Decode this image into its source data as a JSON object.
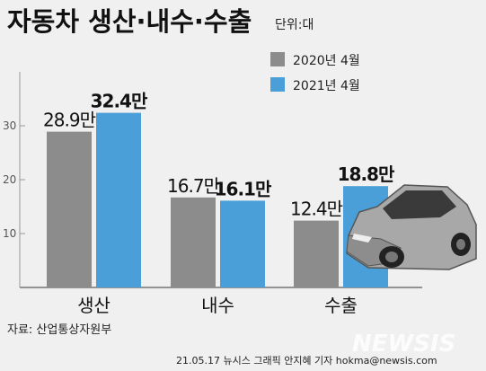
{
  "header": {
    "title": "자동차 생산·내수·수출",
    "unit": "단위:대"
  },
  "chart_data": {
    "type": "bar",
    "categories": [
      "생산",
      "내수",
      "수출"
    ],
    "series": [
      {
        "name": "2020년 4월",
        "values": [
          28.9,
          16.7,
          12.4
        ],
        "labels": [
          "28.9만",
          "16.7만",
          "12.4만"
        ],
        "color": "#8c8c8c"
      },
      {
        "name": "2021년 4월",
        "values": [
          32.4,
          16.1,
          18.8
        ],
        "labels": [
          "32.4만",
          "16.1만",
          "18.8만"
        ],
        "color": "#4a9fd8"
      }
    ],
    "yticks": [
      10,
      20,
      30
    ],
    "ylim": [
      0,
      40
    ],
    "legend": "top-right",
    "grid": false
  },
  "footer": {
    "source": "자료: 산업통상자원부",
    "credit": "21.05.17 뉴시스 그래픽 안지혜 기자 hokma@newsis.com",
    "watermark": "NEWSIS"
  },
  "colors": {
    "background": "#f0f0f0",
    "gray_bar": "#8c8c8c",
    "blue_bar": "#4a9fd8",
    "car_body": "#9a9a9a"
  },
  "icons": {
    "car": "car-icon"
  }
}
